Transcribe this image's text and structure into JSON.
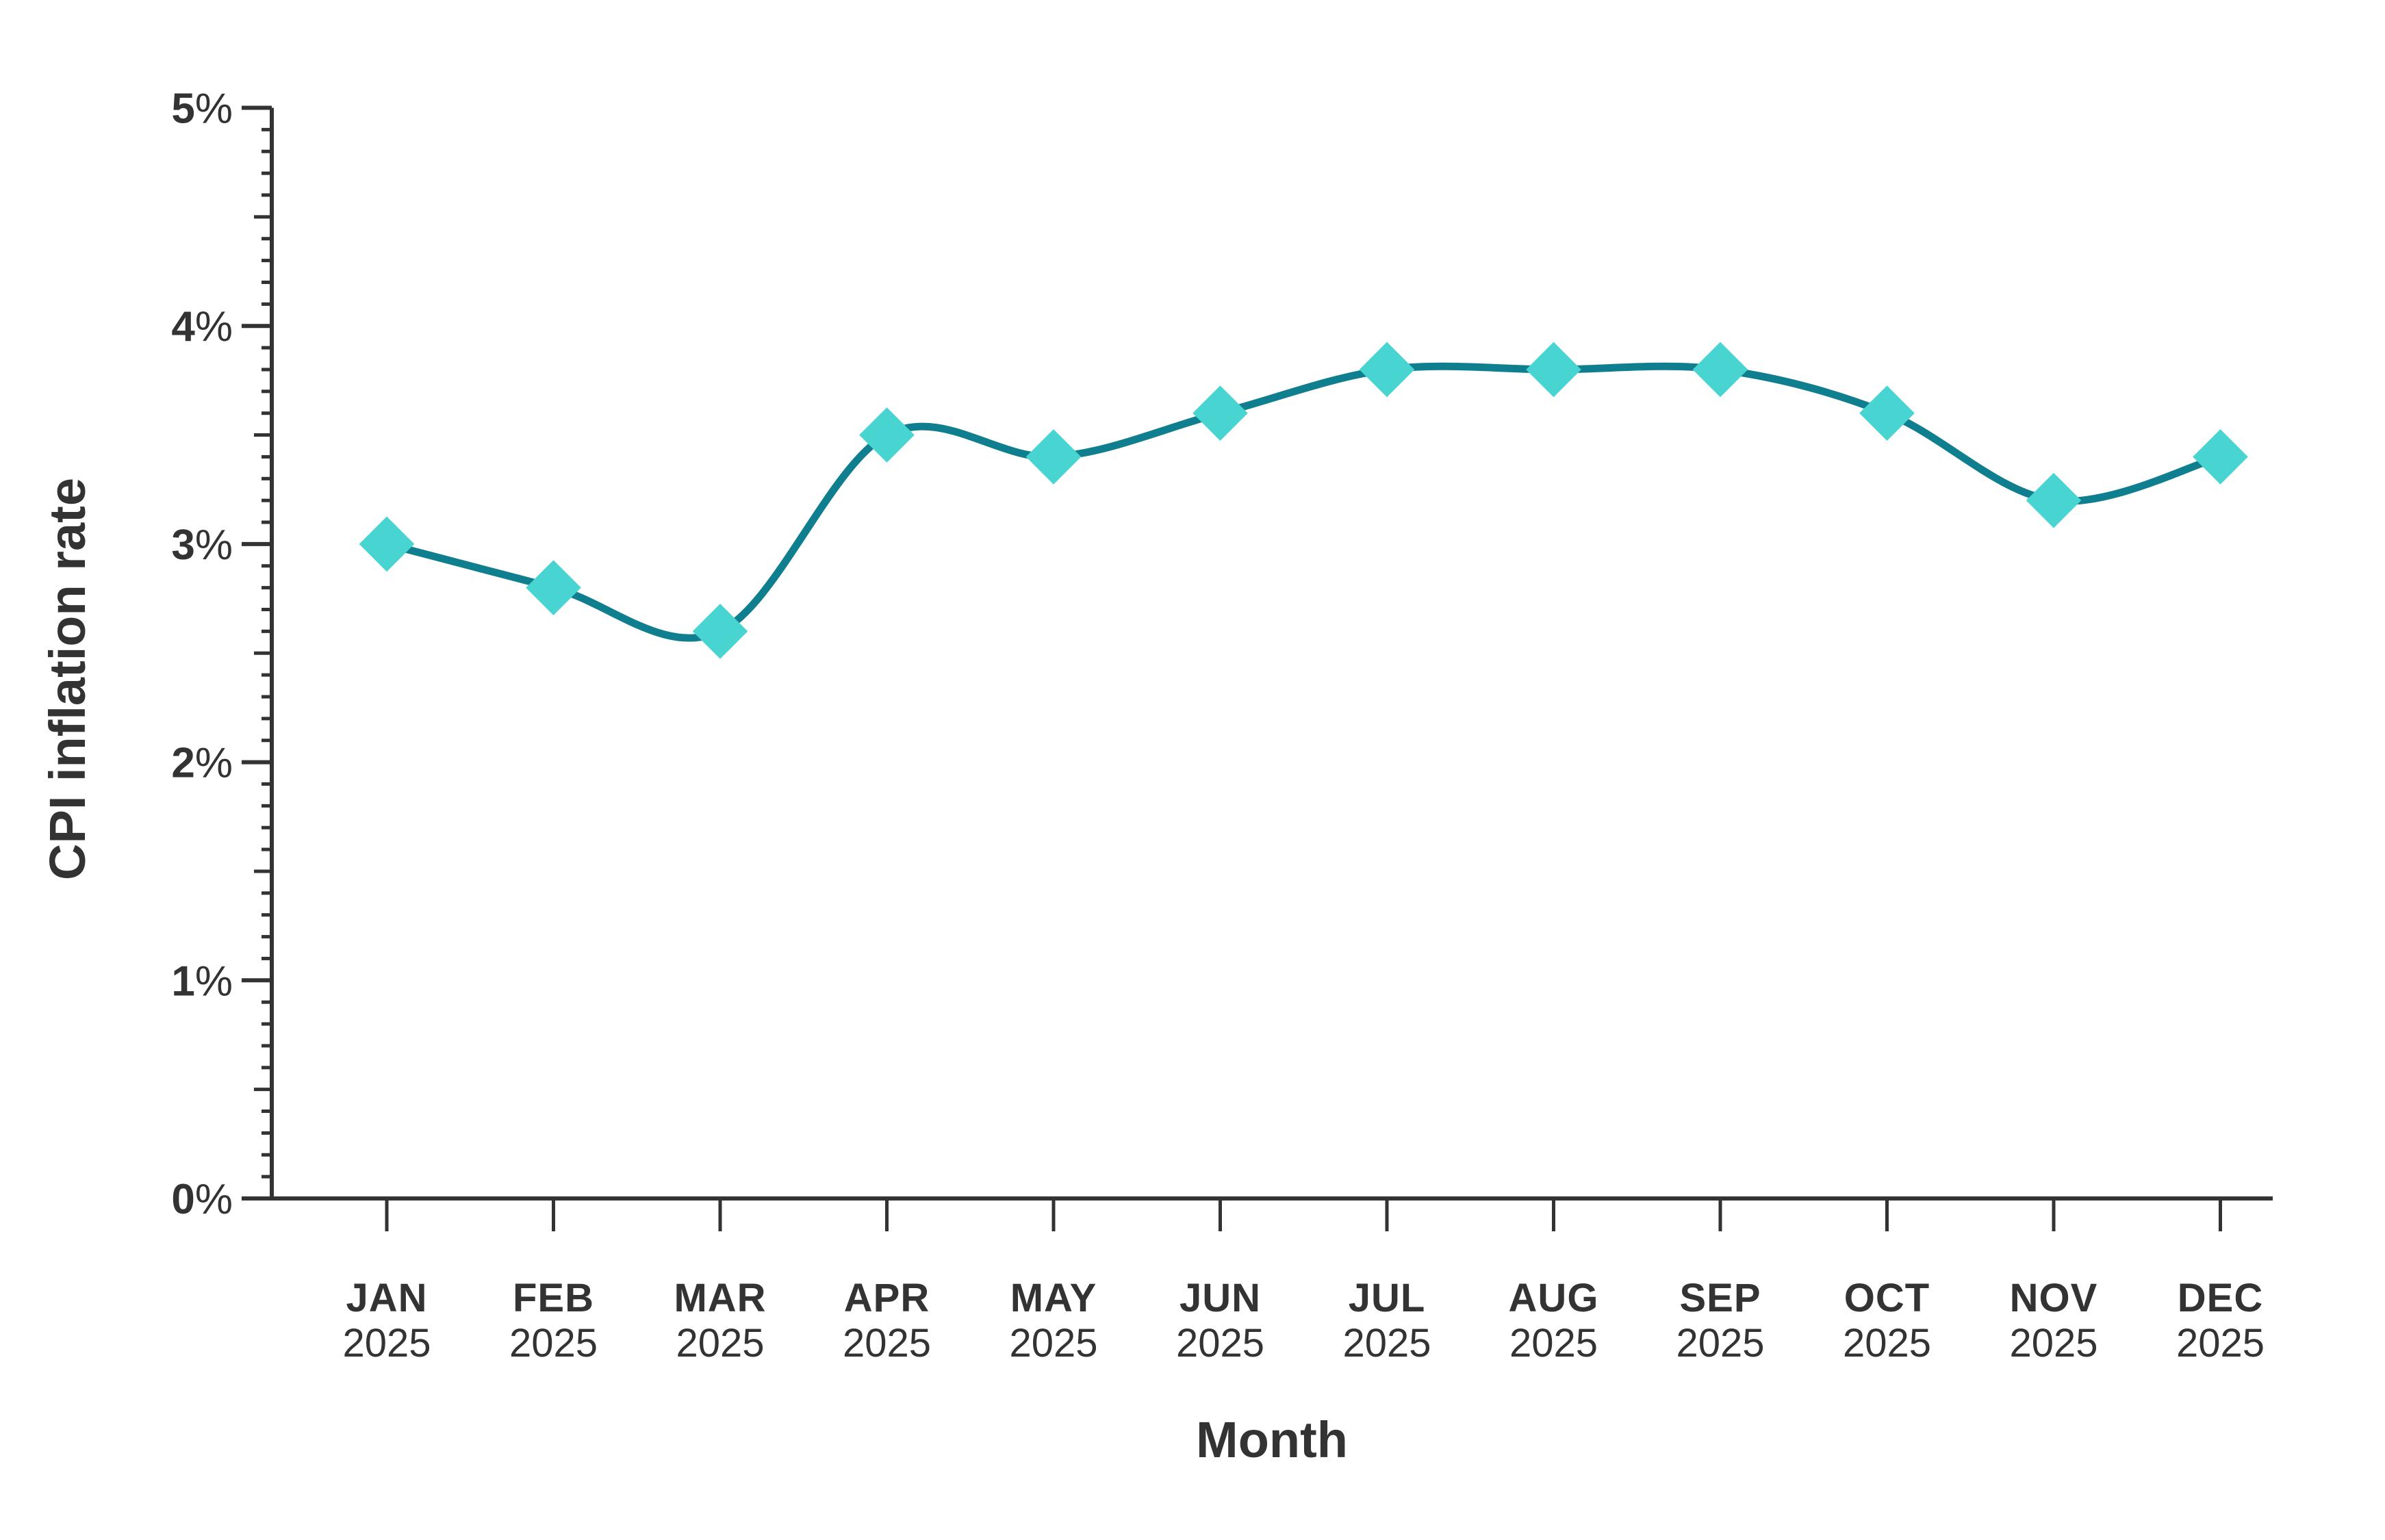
{
  "chart_data": {
    "type": "line",
    "title": "",
    "xlabel": "Month",
    "ylabel": "CPI inflation rate",
    "categories": [
      {
        "month": "JAN",
        "year": "2025"
      },
      {
        "month": "FEB",
        "year": "2025"
      },
      {
        "month": "MAR",
        "year": "2025"
      },
      {
        "month": "APR",
        "year": "2025"
      },
      {
        "month": "MAY",
        "year": "2025"
      },
      {
        "month": "JUN",
        "year": "2025"
      },
      {
        "month": "JUL",
        "year": "2025"
      },
      {
        "month": "AUG",
        "year": "2025"
      },
      {
        "month": "SEP",
        "year": "2025"
      },
      {
        "month": "OCT",
        "year": "2025"
      },
      {
        "month": "NOV",
        "year": "2025"
      },
      {
        "month": "DEC",
        "year": "2025"
      }
    ],
    "series": [
      {
        "name": "CPI inflation rate",
        "values": [
          3.0,
          2.8,
          2.6,
          3.5,
          3.4,
          3.6,
          3.8,
          3.8,
          3.8,
          3.6,
          3.2,
          3.4
        ]
      }
    ],
    "ylim": [
      0,
      5
    ],
    "y_ticks": [
      {
        "num": "0",
        "suffix": "%"
      },
      {
        "num": "1",
        "suffix": "%"
      },
      {
        "num": "2",
        "suffix": "%"
      },
      {
        "num": "3",
        "suffix": "%"
      },
      {
        "num": "4",
        "suffix": "%"
      },
      {
        "num": "5",
        "suffix": "%"
      },
      {
        "num": "5",
        "suffix": "%"
      }
    ],
    "y_major_step": 1,
    "y_mid_step": 0.5,
    "y_minor_step": 0.1,
    "grid": false,
    "legend": "none",
    "marker": "diamond",
    "colors": {
      "line": "#0F7E8E",
      "marker": "#48D5D1",
      "axis": "#333333",
      "text": "#333333",
      "background": "#FFFFFF"
    }
  }
}
